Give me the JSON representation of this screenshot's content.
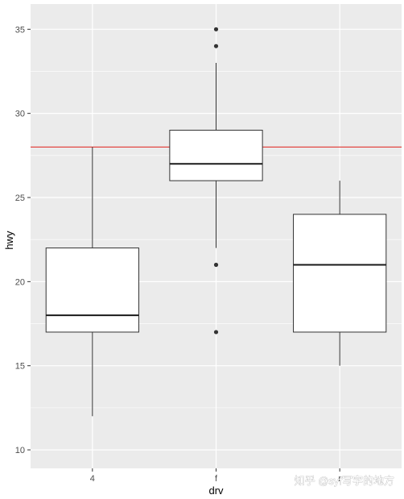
{
  "chart_data": {
    "type": "boxplot",
    "xlabel": "drv",
    "ylabel": "hwy",
    "categories": [
      "4",
      "f",
      "r"
    ],
    "ylim": [
      8.9,
      36.5
    ],
    "yticks": [
      10,
      15,
      20,
      25,
      30,
      35
    ],
    "grid": true,
    "boxes": [
      {
        "category": "4",
        "whisker_low": 12,
        "q1": 17,
        "median": 18,
        "q3": 22,
        "whisker_high": 28,
        "outliers": []
      },
      {
        "category": "f",
        "whisker_low": 22,
        "q1": 26,
        "median": 27,
        "q3": 29,
        "whisker_high": 33,
        "outliers": [
          17,
          21,
          34,
          35
        ]
      },
      {
        "category": "r",
        "whisker_low": 15,
        "q1": 17,
        "median": 21,
        "q3": 24,
        "whisker_high": 26,
        "outliers": []
      }
    ],
    "reference_line": {
      "orientation": "horizontal",
      "y": 28,
      "color": "#e0201b"
    },
    "colors": {
      "panel": "#ebebeb",
      "grid": "#ffffff",
      "box_fill": "#ffffff",
      "box_stroke": "#333333"
    }
  },
  "watermark": "知乎 @syf写字的地方"
}
